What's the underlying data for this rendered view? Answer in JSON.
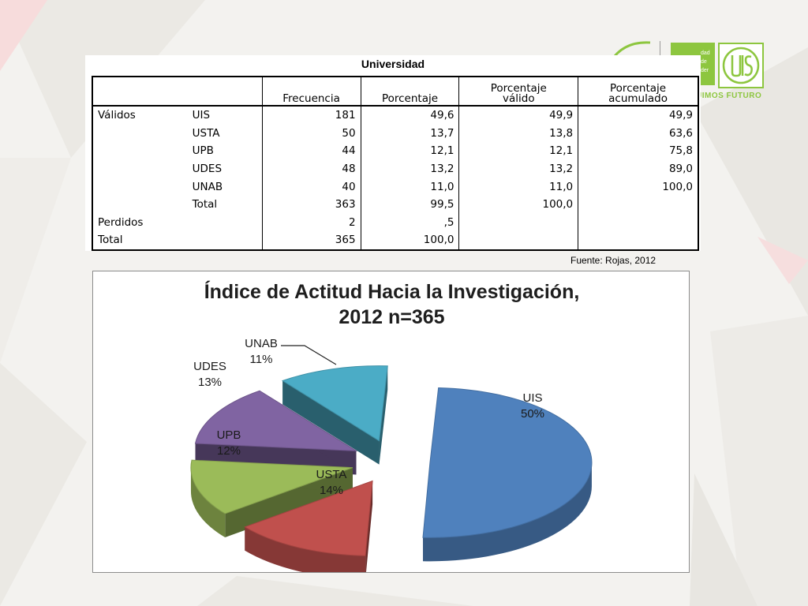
{
  "table": {
    "title": "Universidad",
    "headers": {
      "frecuencia": "Frecuencia",
      "porcentaje": "Porcentaje",
      "porcentaje_valido": [
        "Porcentaje",
        "válido"
      ],
      "porcentaje_acumulado": [
        "Porcentaje",
        "acumulado"
      ]
    },
    "rows": [
      {
        "group": "Válidos",
        "label": "UIS",
        "freq": "181",
        "pct": "49,6",
        "valid": "49,9",
        "cum": "49,9"
      },
      {
        "group": "",
        "label": "USTA",
        "freq": "50",
        "pct": "13,7",
        "valid": "13,8",
        "cum": "63,6"
      },
      {
        "group": "",
        "label": "UPB",
        "freq": "44",
        "pct": "12,1",
        "valid": "12,1",
        "cum": "75,8"
      },
      {
        "group": "",
        "label": "UDES",
        "freq": "48",
        "pct": "13,2",
        "valid": "13,2",
        "cum": "89,0"
      },
      {
        "group": "",
        "label": "UNAB",
        "freq": "40",
        "pct": "11,0",
        "valid": "11,0",
        "cum": "100,0"
      },
      {
        "group": "",
        "label": "Total",
        "freq": "363",
        "pct": "99,5",
        "valid": "100,0",
        "cum": ""
      },
      {
        "group": "Perdidos",
        "label": "",
        "freq": "2",
        "pct": ",5",
        "valid": "",
        "cum": ""
      },
      {
        "group": "Total",
        "label": "",
        "freq": "365",
        "pct": "100,0",
        "valid": "",
        "cum": ""
      }
    ]
  },
  "source_note": "Fuente: Rojas, 2012",
  "logo": {
    "box_text": [
      "dad",
      "de",
      "der"
    ],
    "tagline": "UIMOS FUTURO"
  },
  "chart_data": {
    "type": "pie",
    "title": [
      "Índice de Actitud Hacia la Investigación,",
      "2012 n=365"
    ],
    "slices": [
      {
        "name": "UIS",
        "label": "50%",
        "value": 181,
        "color": "#4f81bd"
      },
      {
        "name": "USTA",
        "label": "14%",
        "value": 50,
        "color": "#c0504d"
      },
      {
        "name": "UPB",
        "label": "12%",
        "value": 44,
        "color": "#9bbb59"
      },
      {
        "name": "UDES",
        "label": "13%",
        "value": 48,
        "color": "#8064a2"
      },
      {
        "name": "UNAB",
        "label": "11%",
        "value": 40,
        "color": "#4bacc6"
      }
    ],
    "style": "3d-exploded"
  }
}
